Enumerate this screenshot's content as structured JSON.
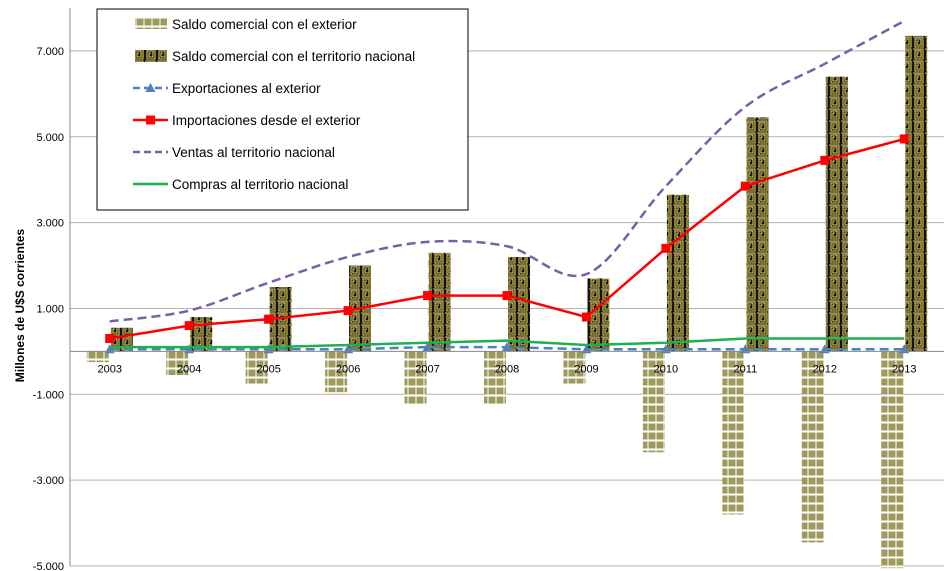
{
  "chart_data": {
    "type": "bar",
    "title": "",
    "xlabel": "",
    "ylabel": "Millones de U$S corrientes",
    "ylim": [
      -5000,
      8000
    ],
    "y_ticks": [
      7000,
      5000,
      3000,
      1000,
      -1000,
      -3000,
      -5000
    ],
    "y_tick_labels": [
      "7.000",
      "5.000",
      "3.000",
      "1.000",
      "-1.000",
      "-3.000",
      "-5.000"
    ],
    "grid": true,
    "legend_position": "top-left",
    "categories": [
      "2003",
      "2004",
      "2005",
      "2006",
      "2007",
      "2008",
      "2009",
      "2010",
      "2011",
      "2012",
      "2013"
    ],
    "series": [
      {
        "name": "Saldo comercial con el exterior",
        "kind": "bar",
        "color": "#9e9a5c",
        "values": [
          -250,
          -550,
          -750,
          -950,
          -1250,
          -1250,
          -750,
          -2350,
          -3800,
          -4450,
          -5050
        ]
      },
      {
        "name": "Saldo comercial con el territorio nacional",
        "kind": "bar",
        "color": "#1a1a1a",
        "values": [
          550,
          800,
          1500,
          2000,
          2300,
          2200,
          1700,
          3650,
          5450,
          6400,
          7350
        ]
      },
      {
        "name": "Exportaciones al exterior",
        "kind": "line",
        "color": "#4f81bd",
        "values": [
          50,
          50,
          50,
          50,
          100,
          100,
          50,
          50,
          50,
          50,
          50
        ]
      },
      {
        "name": "Importaciones desde el exterior",
        "kind": "line",
        "color": "#ff0000",
        "values": [
          300,
          600,
          750,
          950,
          1300,
          1300,
          800,
          2400,
          3850,
          4450,
          4950
        ]
      },
      {
        "name": "Ventas al territorio nacional",
        "kind": "line",
        "color": "#7a5fa8",
        "values": [
          700,
          950,
          1600,
          2200,
          2550,
          2450,
          1800,
          3850,
          5700,
          6700,
          7700
        ]
      },
      {
        "name": "Compras al territorio nacional",
        "kind": "line",
        "color": "#1fb04f",
        "values": [
          100,
          100,
          100,
          150,
          200,
          250,
          150,
          200,
          300,
          300,
          300
        ]
      }
    ]
  }
}
